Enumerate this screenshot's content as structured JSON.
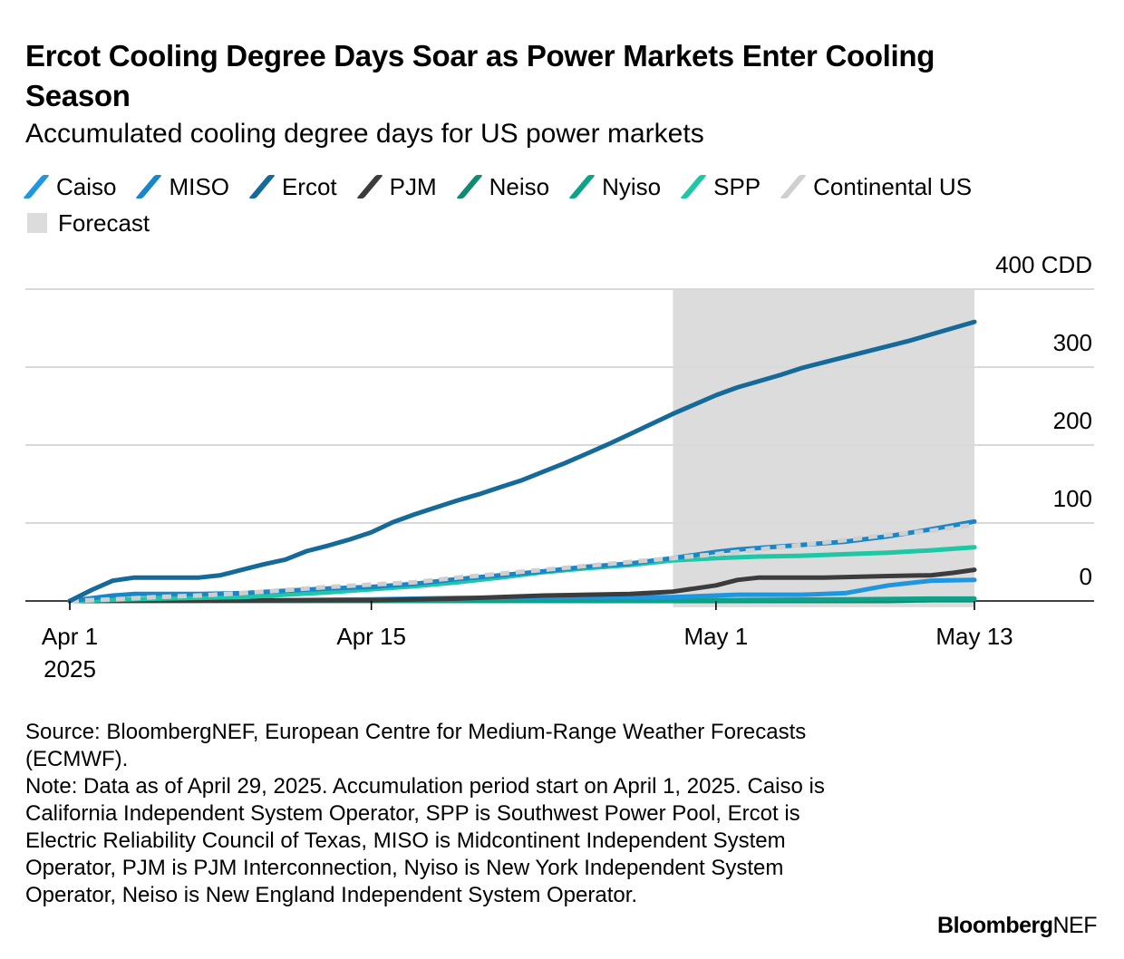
{
  "title": "Ercot Cooling Degree Days Soar as Power Markets Enter Cooling Season",
  "subtitle": "Accumulated cooling degree days for US power markets",
  "legend": {
    "forecast_label": "Forecast",
    "forecast_color": "#dcdcdc"
  },
  "chart_data": {
    "type": "line",
    "title": "Ercot Cooling Degree Days Soar as Power Markets Enter Cooling Season",
    "subtitle": "Accumulated cooling degree days for US power markets",
    "xlabel": "",
    "ylabel": "CDD",
    "x_range_days": [
      0,
      42
    ],
    "ylim": [
      -10,
      400
    ],
    "y_ticks": [
      {
        "value": 400,
        "label": "400 CDD"
      },
      {
        "value": 300,
        "label": "300"
      },
      {
        "value": 200,
        "label": "200"
      },
      {
        "value": 100,
        "label": "100"
      },
      {
        "value": 0,
        "label": "0"
      }
    ],
    "x_ticks": [
      {
        "day": 0,
        "label": "Apr 1",
        "sublabel": "2025"
      },
      {
        "day": 14,
        "label": "Apr 15",
        "sublabel": ""
      },
      {
        "day": 30,
        "label": "May 1",
        "sublabel": ""
      },
      {
        "day": 42,
        "label": "May 13",
        "sublabel": ""
      }
    ],
    "forecast_range_days": [
      28,
      42
    ],
    "series": [
      {
        "name": "Caiso",
        "color": "#1f96e0",
        "dashed": false,
        "points": [
          [
            0,
            0
          ],
          [
            4,
            0
          ],
          [
            10,
            1
          ],
          [
            14,
            2
          ],
          [
            18,
            4
          ],
          [
            20,
            4
          ],
          [
            24,
            5
          ],
          [
            28,
            5
          ],
          [
            31,
            8
          ],
          [
            34,
            8
          ],
          [
            36,
            10
          ],
          [
            38,
            20
          ],
          [
            40,
            26
          ],
          [
            42,
            27
          ]
        ]
      },
      {
        "name": "MISO",
        "color": "#1787c9",
        "dashed": false,
        "points": [
          [
            0,
            0
          ],
          [
            2,
            7
          ],
          [
            3,
            9
          ],
          [
            6,
            9
          ],
          [
            8,
            10
          ],
          [
            10,
            13
          ],
          [
            12,
            16
          ],
          [
            14,
            18
          ],
          [
            16,
            22
          ],
          [
            18,
            28
          ],
          [
            20,
            33
          ],
          [
            22,
            38
          ],
          [
            24,
            44
          ],
          [
            26,
            48
          ],
          [
            28,
            55
          ],
          [
            30,
            63
          ],
          [
            31,
            66
          ],
          [
            32,
            68
          ],
          [
            34,
            72
          ],
          [
            36,
            76
          ],
          [
            38,
            83
          ],
          [
            40,
            92
          ],
          [
            42,
            102
          ]
        ]
      },
      {
        "name": "Ercot",
        "color": "#166a99",
        "dashed": false,
        "points": [
          [
            0,
            0
          ],
          [
            1,
            14
          ],
          [
            2,
            26
          ],
          [
            3,
            30
          ],
          [
            4,
            30
          ],
          [
            6,
            30
          ],
          [
            7,
            33
          ],
          [
            8,
            40
          ],
          [
            9,
            47
          ],
          [
            10,
            53
          ],
          [
            11,
            64
          ],
          [
            12,
            71
          ],
          [
            13,
            79
          ],
          [
            14,
            88
          ],
          [
            15,
            101
          ],
          [
            16,
            111
          ],
          [
            17,
            120
          ],
          [
            18,
            129
          ],
          [
            19,
            137
          ],
          [
            20,
            146
          ],
          [
            21,
            155
          ],
          [
            22,
            166
          ],
          [
            23,
            177
          ],
          [
            24,
            189
          ],
          [
            25,
            201
          ],
          [
            26,
            214
          ],
          [
            27,
            227
          ],
          [
            28,
            240
          ],
          [
            29,
            252
          ],
          [
            30,
            264
          ],
          [
            31,
            274
          ],
          [
            32,
            282
          ],
          [
            33,
            290
          ],
          [
            34,
            299
          ],
          [
            35,
            306
          ],
          [
            36,
            313
          ],
          [
            37,
            320
          ],
          [
            38,
            327
          ],
          [
            39,
            334
          ],
          [
            40,
            342
          ],
          [
            41,
            350
          ],
          [
            42,
            358
          ]
        ]
      },
      {
        "name": "PJM",
        "color": "#3c3c3c",
        "dashed": false,
        "points": [
          [
            0,
            0
          ],
          [
            14,
            1
          ],
          [
            18,
            3
          ],
          [
            22,
            7
          ],
          [
            24,
            8
          ],
          [
            26,
            9
          ],
          [
            28,
            12
          ],
          [
            30,
            20
          ],
          [
            31,
            27
          ],
          [
            32,
            30
          ],
          [
            35,
            30
          ],
          [
            38,
            32
          ],
          [
            40,
            33
          ],
          [
            41,
            36
          ],
          [
            42,
            40
          ]
        ]
      },
      {
        "name": "Neiso",
        "color": "#0f8a73",
        "dashed": false,
        "points": [
          [
            0,
            0
          ],
          [
            20,
            0
          ],
          [
            30,
            0
          ],
          [
            34,
            0
          ],
          [
            38,
            0
          ],
          [
            40,
            1
          ],
          [
            42,
            1
          ]
        ]
      },
      {
        "name": "Nyiso",
        "color": "#0ea389",
        "dashed": false,
        "points": [
          [
            0,
            0
          ],
          [
            20,
            0
          ],
          [
            30,
            1
          ],
          [
            36,
            2
          ],
          [
            40,
            3
          ],
          [
            42,
            3
          ]
        ]
      },
      {
        "name": "SPP",
        "color": "#1ec8a7",
        "dashed": false,
        "points": [
          [
            0,
            0
          ],
          [
            4,
            3
          ],
          [
            8,
            5
          ],
          [
            10,
            8
          ],
          [
            12,
            11
          ],
          [
            14,
            15
          ],
          [
            16,
            19
          ],
          [
            18,
            24
          ],
          [
            20,
            30
          ],
          [
            22,
            37
          ],
          [
            24,
            42
          ],
          [
            26,
            46
          ],
          [
            28,
            52
          ],
          [
            30,
            55
          ],
          [
            32,
            57
          ],
          [
            34,
            58
          ],
          [
            36,
            60
          ],
          [
            38,
            62
          ],
          [
            40,
            65
          ],
          [
            42,
            69
          ]
        ]
      },
      {
        "name": "Continental US",
        "color": "#cfcfcf",
        "dashed": true,
        "points": [
          [
            0,
            0
          ],
          [
            2,
            2
          ],
          [
            4,
            5
          ],
          [
            6,
            7
          ],
          [
            8,
            10
          ],
          [
            10,
            14
          ],
          [
            12,
            18
          ],
          [
            14,
            21
          ],
          [
            16,
            24
          ],
          [
            18,
            30
          ],
          [
            20,
            35
          ],
          [
            22,
            40
          ],
          [
            24,
            45
          ],
          [
            26,
            50
          ],
          [
            28,
            55
          ],
          [
            30,
            60
          ],
          [
            32,
            66
          ],
          [
            34,
            72
          ],
          [
            36,
            78
          ],
          [
            38,
            85
          ],
          [
            40,
            90
          ],
          [
            42,
            98
          ]
        ]
      }
    ]
  },
  "footer": {
    "source": "Source: BloombergNEF, European Centre for Medium-Range Weather Forecasts (ECMWF).",
    "note": "Note: Data as of April 29, 2025. Accumulation period start on April 1, 2025. Caiso is California Independent System Operator, SPP is Southwest Power Pool, Ercot is Electric Reliability Council of Texas, MISO is Midcontinent Independent System Operator, PJM is PJM Interconnection, Nyiso is New York Independent System Operator, Neiso is New England Independent System Operator."
  },
  "brand": {
    "bold": "Bloomberg",
    "light": "NEF"
  }
}
